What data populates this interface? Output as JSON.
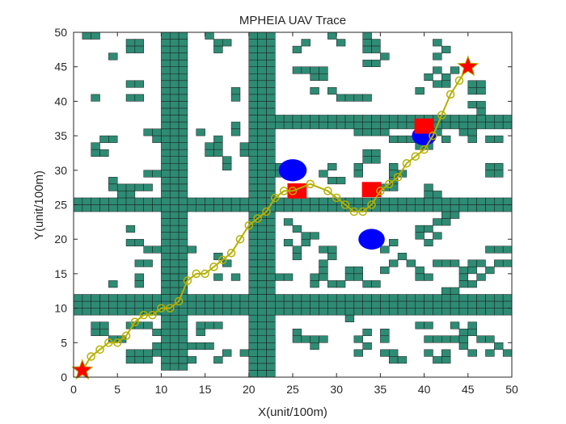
{
  "chart_data": {
    "type": "scatter",
    "title": "MPHEIA UAV Trace",
    "xlabel": "X(unit/100m)",
    "ylabel": "Y(unit/100m)",
    "xlim": [
      0,
      50
    ],
    "ylim": [
      0,
      50
    ],
    "xticks": [
      0,
      5,
      10,
      15,
      20,
      25,
      30,
      35,
      40,
      45,
      50
    ],
    "yticks": [
      0,
      5,
      10,
      15,
      20,
      25,
      30,
      35,
      40,
      45,
      50
    ],
    "grid": false,
    "colors": {
      "obstacle_fill": "#2E8B74",
      "obstacle_edge": "#1a1a1a",
      "path": "#B5B000",
      "threat_circle": "#0000FF",
      "threat_square": "#FF0000",
      "endpoint": "#FF0000"
    },
    "obstacle_walls": [
      {
        "x": [
          10,
          13
        ],
        "y": [
          1,
          50
        ]
      },
      {
        "x": [
          20,
          23
        ],
        "y": [
          0,
          50
        ]
      },
      {
        "x": [
          0,
          50
        ],
        "y": [
          24,
          26
        ]
      },
      {
        "x": [
          0,
          50
        ],
        "y": [
          9,
          12
        ]
      },
      {
        "x": [
          23,
          50
        ],
        "y": [
          36,
          38
        ]
      }
    ],
    "obstacle_cells": [
      [
        1,
        49
      ],
      [
        2,
        49
      ],
      [
        4,
        46
      ],
      [
        6,
        48
      ],
      [
        7,
        48
      ],
      [
        6,
        47
      ],
      [
        7,
        47
      ],
      [
        15,
        49
      ],
      [
        16,
        48
      ],
      [
        17,
        48
      ],
      [
        16,
        47
      ],
      [
        29,
        49
      ],
      [
        30,
        48
      ],
      [
        25,
        47
      ],
      [
        26,
        48
      ],
      [
        33,
        49
      ],
      [
        33,
        48
      ],
      [
        34,
        48
      ],
      [
        33,
        47
      ],
      [
        34,
        47
      ],
      [
        33,
        45
      ],
      [
        34,
        45
      ],
      [
        35,
        46
      ],
      [
        25,
        44
      ],
      [
        26,
        44
      ],
      [
        27,
        44
      ],
      [
        27,
        43
      ],
      [
        28,
        44
      ],
      [
        41,
        48
      ],
      [
        42,
        47
      ],
      [
        41,
        46
      ],
      [
        40,
        43
      ],
      [
        41,
        44
      ],
      [
        42,
        43
      ],
      [
        41,
        42
      ],
      [
        42,
        42
      ],
      [
        43,
        44
      ],
      [
        2,
        40
      ],
      [
        6,
        42
      ],
      [
        7,
        42
      ],
      [
        6,
        40
      ],
      [
        7,
        40
      ],
      [
        18,
        41
      ],
      [
        18,
        40
      ],
      [
        28,
        43
      ],
      [
        27,
        41
      ],
      [
        29,
        41
      ],
      [
        30,
        40
      ],
      [
        31,
        40
      ],
      [
        32,
        40
      ],
      [
        33,
        40
      ],
      [
        39,
        41
      ],
      [
        45,
        42
      ],
      [
        46,
        42
      ],
      [
        45,
        41
      ],
      [
        46,
        41
      ],
      [
        45,
        39
      ],
      [
        46,
        39
      ],
      [
        46,
        38
      ],
      [
        44,
        35
      ],
      [
        45,
        35
      ],
      [
        45,
        34
      ],
      [
        47,
        34
      ],
      [
        48,
        34
      ],
      [
        32,
        35
      ],
      [
        33,
        35
      ],
      [
        34,
        35
      ],
      [
        35,
        35
      ],
      [
        36,
        34
      ],
      [
        37,
        34
      ],
      [
        38,
        34
      ],
      [
        39,
        33
      ],
      [
        40,
        33
      ],
      [
        41,
        35
      ],
      [
        42,
        34
      ],
      [
        2,
        33
      ],
      [
        3,
        34
      ],
      [
        4,
        34
      ],
      [
        3,
        32
      ],
      [
        2,
        32
      ],
      [
        8,
        35
      ],
      [
        9,
        35
      ],
      [
        9,
        34
      ],
      [
        8,
        29
      ],
      [
        9,
        29
      ],
      [
        14,
        35
      ],
      [
        15,
        33
      ],
      [
        16,
        33
      ],
      [
        15,
        32
      ],
      [
        16,
        32
      ],
      [
        17,
        31
      ],
      [
        17,
        30
      ],
      [
        16,
        34
      ],
      [
        18,
        36
      ],
      [
        18,
        35
      ],
      [
        19,
        33
      ],
      [
        20,
        32
      ],
      [
        19,
        32
      ],
      [
        23,
        30
      ],
      [
        23,
        29
      ],
      [
        24,
        29
      ],
      [
        29,
        30
      ],
      [
        28,
        29
      ],
      [
        29,
        28
      ],
      [
        30,
        28
      ],
      [
        33,
        32
      ],
      [
        34,
        32
      ],
      [
        33,
        31
      ],
      [
        34,
        31
      ],
      [
        32,
        30
      ],
      [
        32,
        29
      ],
      [
        36,
        30
      ],
      [
        36,
        29
      ],
      [
        37,
        29
      ],
      [
        36,
        28
      ],
      [
        47,
        30
      ],
      [
        48,
        30
      ],
      [
        47,
        29
      ],
      [
        48,
        29
      ],
      [
        4,
        28
      ],
      [
        4,
        27
      ],
      [
        5,
        27
      ],
      [
        6,
        27
      ],
      [
        7,
        27
      ],
      [
        8,
        27
      ],
      [
        5,
        26
      ],
      [
        6,
        26
      ],
      [
        34,
        27
      ],
      [
        35,
        27
      ],
      [
        36,
        27
      ],
      [
        40,
        27
      ],
      [
        40,
        26
      ],
      [
        41,
        26
      ],
      [
        42,
        23
      ],
      [
        43,
        23
      ],
      [
        41,
        22
      ],
      [
        42,
        22
      ],
      [
        40,
        21
      ],
      [
        39,
        21
      ],
      [
        41,
        20
      ],
      [
        39,
        20
      ],
      [
        40,
        19
      ],
      [
        6,
        21
      ],
      [
        6,
        19
      ],
      [
        7,
        19
      ],
      [
        8,
        18
      ],
      [
        9,
        18
      ],
      [
        7,
        16
      ],
      [
        8,
        16
      ],
      [
        10,
        16
      ],
      [
        11,
        16
      ],
      [
        10,
        15
      ],
      [
        11,
        15
      ],
      [
        13,
        18
      ],
      [
        16,
        17
      ],
      [
        17,
        16
      ],
      [
        18,
        14
      ],
      [
        16,
        14
      ],
      [
        4,
        13
      ],
      [
        7,
        14
      ],
      [
        7,
        13
      ],
      [
        24,
        22
      ],
      [
        25,
        21
      ],
      [
        26,
        20
      ],
      [
        27,
        20
      ],
      [
        26,
        19
      ],
      [
        24,
        19
      ],
      [
        25,
        18
      ],
      [
        25,
        17
      ],
      [
        28,
        18
      ],
      [
        29,
        18
      ],
      [
        29,
        17
      ],
      [
        28,
        16
      ],
      [
        28,
        15
      ],
      [
        27,
        14
      ],
      [
        27,
        13
      ],
      [
        28,
        14
      ],
      [
        31,
        15
      ],
      [
        32,
        15
      ],
      [
        31,
        14
      ],
      [
        32,
        14
      ],
      [
        33,
        13
      ],
      [
        34,
        13
      ],
      [
        35,
        18
      ],
      [
        36,
        19
      ],
      [
        37,
        17
      ],
      [
        36,
        16
      ],
      [
        35,
        15
      ],
      [
        38,
        16
      ],
      [
        39,
        15
      ],
      [
        39,
        14
      ],
      [
        40,
        14
      ],
      [
        41,
        16
      ],
      [
        42,
        16
      ],
      [
        43,
        16
      ],
      [
        44,
        15
      ],
      [
        45,
        16
      ],
      [
        46,
        16
      ],
      [
        47,
        18
      ],
      [
        48,
        18
      ],
      [
        49,
        18
      ],
      [
        48,
        16
      ],
      [
        47,
        15
      ],
      [
        46,
        14
      ],
      [
        44,
        14
      ],
      [
        45,
        13
      ],
      [
        49,
        16
      ],
      [
        2,
        7
      ],
      [
        3,
        7
      ],
      [
        2,
        6
      ],
      [
        3,
        6
      ],
      [
        6,
        7
      ],
      [
        4,
        5
      ],
      [
        5,
        5
      ],
      [
        6,
        3
      ],
      [
        7,
        3
      ],
      [
        6,
        2
      ],
      [
        8,
        3
      ],
      [
        8,
        2
      ],
      [
        7,
        2
      ],
      [
        7,
        7
      ],
      [
        8,
        7
      ],
      [
        9,
        6
      ],
      [
        9,
        4
      ],
      [
        9,
        3
      ],
      [
        13,
        4
      ],
      [
        14,
        4
      ],
      [
        15,
        4
      ],
      [
        14,
        7
      ],
      [
        15,
        7
      ],
      [
        16,
        7
      ],
      [
        14,
        6
      ],
      [
        17,
        3
      ],
      [
        16,
        2
      ],
      [
        19,
        3
      ],
      [
        22,
        5
      ],
      [
        22,
        4
      ],
      [
        25,
        6
      ],
      [
        25,
        5
      ],
      [
        26,
        5
      ],
      [
        27,
        4
      ],
      [
        27,
        5
      ],
      [
        28,
        5
      ],
      [
        31,
        8
      ],
      [
        32,
        5
      ],
      [
        33,
        4
      ],
      [
        33,
        6
      ],
      [
        32,
        3
      ],
      [
        35,
        6
      ],
      [
        35,
        5
      ],
      [
        35,
        3
      ],
      [
        36,
        3
      ],
      [
        36,
        2
      ],
      [
        37,
        2
      ],
      [
        39,
        7
      ],
      [
        40,
        7
      ],
      [
        40,
        5
      ],
      [
        40,
        3
      ],
      [
        41,
        2
      ],
      [
        42,
        2
      ],
      [
        42,
        3
      ],
      [
        41,
        5
      ],
      [
        42,
        5
      ],
      [
        43,
        5
      ],
      [
        44,
        5
      ],
      [
        44,
        6
      ],
      [
        45,
        6
      ],
      [
        45,
        7
      ],
      [
        44,
        4
      ],
      [
        46,
        5
      ],
      [
        47,
        5
      ],
      [
        45,
        3
      ],
      [
        47,
        3
      ],
      [
        48,
        4
      ],
      [
        49,
        3
      ],
      [
        37,
        10
      ],
      [
        38,
        10
      ],
      [
        29,
        13
      ],
      [
        30,
        13
      ],
      [
        42,
        12
      ],
      [
        43,
        12
      ],
      [
        44,
        13
      ],
      [
        45,
        15
      ],
      [
        46,
        10
      ],
      [
        47,
        10
      ],
      [
        49,
        10
      ],
      [
        43,
        7
      ],
      [
        23,
        14
      ],
      [
        24,
        14
      ],
      [
        12,
        2
      ],
      [
        13,
        2
      ],
      [
        12,
        3
      ]
    ],
    "threats": [
      {
        "shape": "circle",
        "x": 25,
        "y": 30,
        "r": 1.6
      },
      {
        "shape": "circle",
        "x": 40,
        "y": 35,
        "r": 1.4
      },
      {
        "shape": "circle",
        "x": 34,
        "y": 20,
        "r": 1.5
      },
      {
        "shape": "square",
        "x": 25.5,
        "y": 27,
        "size": 2.2
      },
      {
        "shape": "square",
        "x": 34,
        "y": 27.2,
        "size": 2.2
      },
      {
        "shape": "square",
        "x": 40,
        "y": 36.4,
        "size": 2.2
      }
    ],
    "endpoints": [
      {
        "label": "start",
        "x": 1,
        "y": 1
      },
      {
        "label": "goal",
        "x": 45,
        "y": 45
      }
    ],
    "series": [
      {
        "x": [
          1,
          2,
          3,
          4,
          5,
          6,
          7,
          8,
          9,
          10,
          11,
          12,
          13,
          14,
          15,
          16,
          17,
          18,
          19,
          20,
          21,
          22,
          23,
          24,
          25,
          27,
          29,
          30,
          31,
          32,
          33,
          34,
          35,
          36,
          37,
          38,
          39,
          40,
          41,
          42,
          43,
          44,
          45
        ],
        "y": [
          1,
          3,
          4,
          5,
          5,
          6,
          8,
          9,
          9,
          10,
          10,
          11,
          14,
          15,
          15,
          16,
          17,
          18,
          20,
          22,
          23,
          24,
          26,
          27,
          27,
          28,
          27,
          26,
          25,
          24,
          24,
          25,
          27,
          28,
          29,
          31,
          32,
          33,
          35,
          38,
          41,
          43,
          45
        ]
      }
    ]
  }
}
